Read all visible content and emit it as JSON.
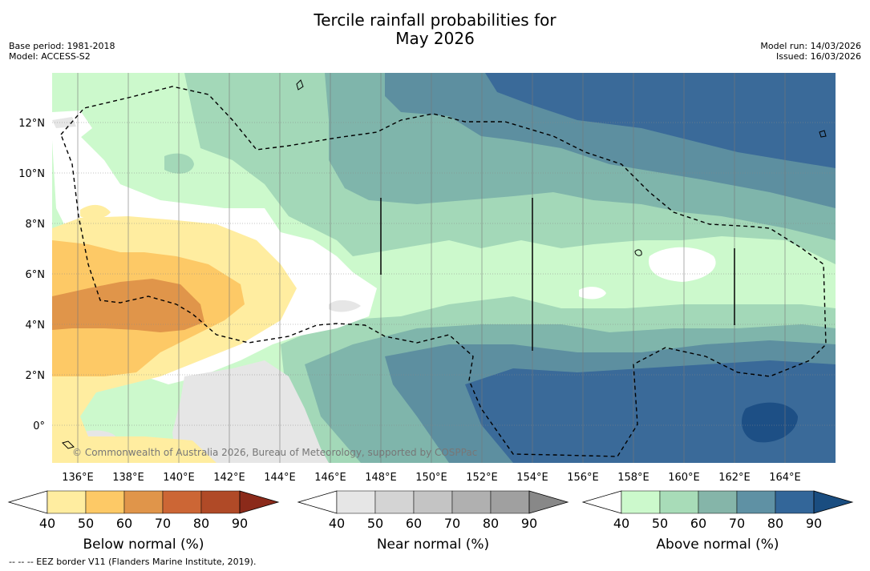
{
  "title_line1": "Tercile rainfall probabilities for",
  "title_line2": "May 2026",
  "base_period": "Base period: 1981-2018",
  "model": "Model: ACCESS-S2",
  "model_run": "Model run: 14/03/2026",
  "issued": "Issued: 16/03/2026",
  "copyright": "© Commonwealth of Australia 2026, Bureau of Meteorology, supported by COSPPac",
  "footer": "--  --  -- EEZ border V11 (Flanders Marine Institute, 2019).",
  "x_ticks": [
    "136°E",
    "138°E",
    "140°E",
    "142°E",
    "144°E",
    "146°E",
    "148°E",
    "150°E",
    "152°E",
    "154°E",
    "156°E",
    "158°E",
    "160°E",
    "162°E",
    "164°E"
  ],
  "y_ticks": [
    "12°N",
    "10°N",
    "8°N",
    "6°N",
    "4°N",
    "2°N",
    "0°"
  ],
  "colorbars": [
    {
      "title": "Below normal (%)",
      "labels": [
        "40",
        "50",
        "60",
        "70",
        "80",
        "90"
      ],
      "colors": [
        "#ffeda0",
        "#fdc966",
        "#e0954a",
        "#cc6635",
        "#b04a27"
      ],
      "extend": "#8b2a1a"
    },
    {
      "title": "Near normal (%)",
      "labels": [
        "40",
        "50",
        "60",
        "70",
        "80",
        "90"
      ],
      "colors": [
        "#e6e6e6",
        "#d4d4d4",
        "#c4c4c4",
        "#b0b0b0",
        "#a0a0a0"
      ],
      "extend": "#888888"
    },
    {
      "title": "Above normal (%)",
      "labels": [
        "40",
        "50",
        "60",
        "70",
        "80",
        "90"
      ],
      "colors": [
        "#ccf9cc",
        "#a8dcb8",
        "#85b5a9",
        "#5f91a4",
        "#336699"
      ],
      "extend": "#1a4d80"
    }
  ],
  "map_legend": {
    "classes": [
      "Below normal",
      "Near normal",
      "Above normal"
    ],
    "border": "EEZ border"
  }
}
